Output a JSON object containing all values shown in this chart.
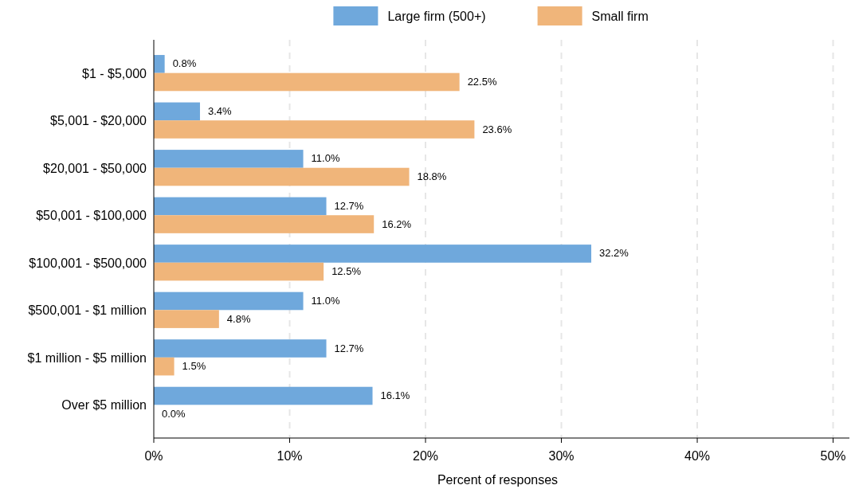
{
  "chart_data": {
    "type": "bar",
    "orientation": "horizontal",
    "xlabel": "Percent of responses",
    "categories": [
      "$1 - $5,000",
      "$5,001 - $20,000",
      "$20,001 - $50,000",
      "$50,001 - $100,000",
      "$100,001 - $500,000",
      "$500,001 - $1 million",
      "$1 million - $5 million",
      "Over $5 million"
    ],
    "series": [
      {
        "name": "Large firm (500+)",
        "color": "#6fa8dc",
        "values": [
          0.8,
          3.4,
          11.0,
          12.7,
          32.2,
          11.0,
          12.7,
          16.1
        ],
        "value_labels": [
          "0.8%",
          "3.4%",
          "11.0%",
          "12.7%",
          "32.2%",
          "11.0%",
          "12.7%",
          "16.1%"
        ]
      },
      {
        "name": "Small firm",
        "color": "#f0b57a",
        "values": [
          22.5,
          23.6,
          18.8,
          16.2,
          12.5,
          4.8,
          1.5,
          0.0
        ],
        "value_labels": [
          "22.5%",
          "23.6%",
          "18.8%",
          "16.2%",
          "12.5%",
          "4.8%",
          "1.5%",
          "0.0%"
        ]
      }
    ],
    "xlim": [
      0,
      51.2
    ],
    "xticks": [
      {
        "value": 0,
        "label": "0%"
      },
      {
        "value": 10,
        "label": "10%"
      },
      {
        "value": 20,
        "label": "20%"
      },
      {
        "value": 30,
        "label": "30%"
      },
      {
        "value": 40,
        "label": "40%"
      },
      {
        "value": 50,
        "label": "50%"
      }
    ],
    "grid": "x",
    "legend": "top"
  }
}
